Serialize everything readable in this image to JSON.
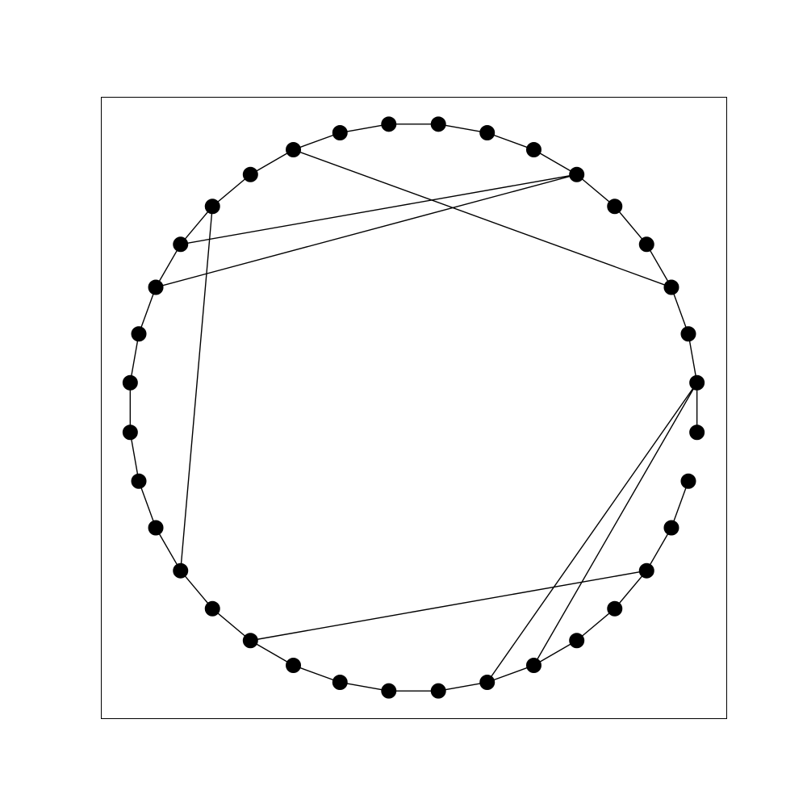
{
  "graph": {
    "node_count": 36,
    "ring_edges": [
      [
        0,
        1
      ],
      [
        1,
        2
      ],
      [
        2,
        3
      ],
      [
        3,
        4
      ],
      [
        4,
        5
      ],
      [
        5,
        6
      ],
      [
        6,
        7
      ],
      [
        7,
        8
      ],
      [
        8,
        9
      ],
      [
        9,
        10
      ],
      [
        10,
        11
      ],
      [
        11,
        12
      ],
      [
        12,
        13
      ],
      [
        13,
        14
      ],
      [
        14,
        15
      ],
      [
        15,
        16
      ],
      [
        16,
        17
      ],
      [
        17,
        18
      ],
      [
        18,
        19
      ],
      [
        19,
        20
      ],
      [
        20,
        21
      ],
      [
        21,
        22
      ],
      [
        22,
        23
      ],
      [
        23,
        24
      ],
      [
        24,
        25
      ],
      [
        25,
        26
      ],
      [
        26,
        27
      ],
      [
        27,
        28
      ],
      [
        28,
        29
      ],
      [
        29,
        30
      ],
      [
        30,
        31
      ],
      [
        31,
        32
      ],
      [
        32,
        33
      ],
      [
        33,
        34
      ],
      [
        34,
        35
      ]
    ],
    "chord_edges": [
      [
        3,
        12
      ],
      [
        6,
        15
      ],
      [
        6,
        16
      ],
      [
        14,
        22
      ],
      [
        24,
        33
      ],
      [
        1,
        29
      ],
      [
        1,
        30
      ]
    ]
  },
  "colors": {
    "node": "#000000",
    "edge": "#000000",
    "frame": "#000000",
    "background": "#ffffff"
  }
}
